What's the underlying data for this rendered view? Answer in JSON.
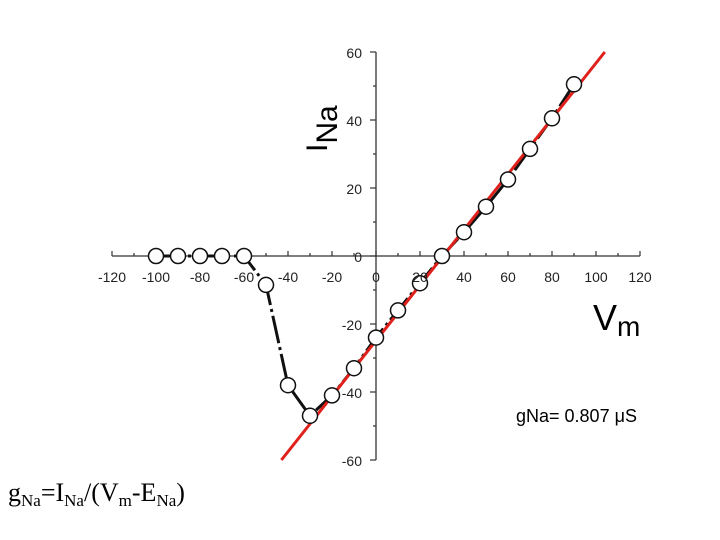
{
  "chart_data": {
    "type": "scatter",
    "title": "",
    "xlabel": {
      "main": "V",
      "sub": "m"
    },
    "ylabel": {
      "main": "I",
      "sub": "Na"
    },
    "xlim": [
      -120,
      120
    ],
    "ylim": [
      -60,
      60
    ],
    "x_ticks": [
      -120,
      -100,
      -80,
      -60,
      -40,
      -20,
      0,
      20,
      40,
      60,
      80,
      100,
      120
    ],
    "y_ticks": [
      -60,
      -40,
      -20,
      0,
      20,
      40,
      60
    ],
    "grid": false,
    "series": [
      {
        "marker": "open-circle",
        "connected": "dashed",
        "points": [
          [
            -100,
            0
          ],
          [
            -90,
            0
          ],
          [
            -80,
            0
          ],
          [
            -70,
            0
          ],
          [
            -60,
            0
          ],
          [
            -50,
            -8.5
          ],
          [
            -40,
            -38
          ],
          [
            -30,
            -47
          ],
          [
            -20,
            -41
          ],
          [
            -10,
            -33
          ],
          [
            0,
            -24
          ],
          [
            10,
            -16
          ],
          [
            20,
            -8
          ],
          [
            30,
            0
          ],
          [
            40,
            7
          ],
          [
            50,
            14.5
          ],
          [
            60,
            22.5
          ],
          [
            70,
            31.5
          ],
          [
            80,
            40.5
          ],
          [
            90,
            50.5
          ]
        ]
      }
    ],
    "fit_line": {
      "color": "#e0201a",
      "points": [
        [
          -43,
          -60
        ],
        [
          104,
          60
        ]
      ]
    },
    "annotation": "gNa= 0.807 μS"
  },
  "formula": {
    "g": "g",
    "g_sub": "Na",
    "eq": "=I",
    "i_sub": "Na",
    "div": "/(V",
    "v_sub": "m",
    "minus": "-E",
    "e_sub": "Na",
    "close": ")"
  }
}
